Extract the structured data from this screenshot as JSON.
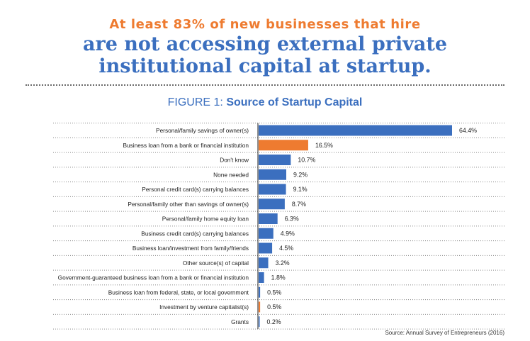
{
  "headline": {
    "top": "At least 83% of new businesses that hire",
    "line1": "are not accessing external private",
    "line2": "institutional capital at startup."
  },
  "figure": {
    "label": "FIGURE 1:",
    "name": "Source of Startup Capital"
  },
  "source": "Source: Annual Survey of Entrepreneurs (2016)",
  "colors": {
    "blue": "#3b6fbf",
    "orange": "#ee7b30",
    "text": "#222222"
  },
  "chart_data": {
    "type": "bar",
    "orientation": "horizontal",
    "title": "Source of Startup Capital",
    "categories": [
      "Personal/family savings of owner(s)",
      "Business loan from a bank or financial institution",
      "Don't know",
      "None needed",
      "Personal credit card(s) carrying balances",
      "Personal/family other than savings of owner(s)",
      "Personal/family home equity loan",
      "Business credit card(s) carrying balances",
      "Business loan/investment from family/friends",
      "Other source(s) of capital",
      "Government-guaranteed business loan from a bank or financial institution",
      "Business loan from federal, state, or local government",
      "Investment by venture capitalist(s)",
      "Grants"
    ],
    "values": [
      64.4,
      16.5,
      10.7,
      9.2,
      9.1,
      8.7,
      6.3,
      4.9,
      4.5,
      3.2,
      1.8,
      0.5,
      0.5,
      0.2
    ],
    "value_labels": [
      "64.4%",
      "16.5%",
      "10.7%",
      "9.2%",
      "9.1%",
      "8.7%",
      "6.3%",
      "4.9%",
      "4.5%",
      "3.2%",
      "1.8%",
      "0.5%",
      "0.5%",
      "0.2%"
    ],
    "highlight": [
      false,
      true,
      false,
      false,
      false,
      false,
      false,
      false,
      false,
      false,
      false,
      false,
      true,
      false
    ],
    "unit": "%",
    "xlim": [
      0,
      64.4
    ],
    "grid": "dotted row separators"
  }
}
